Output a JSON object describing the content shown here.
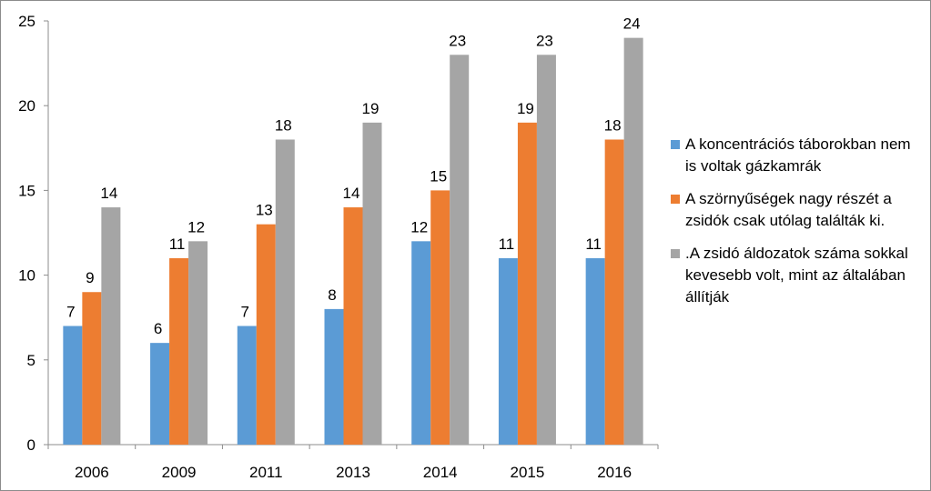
{
  "chart_data": {
    "type": "bar",
    "categories": [
      "2006",
      "2009",
      "2011",
      "2013",
      "2014",
      "2015",
      "2016"
    ],
    "series": [
      {
        "name": "A koncentrációs táborokban nem is voltak gázkamrák",
        "color": "#5b9bd5",
        "values": [
          7,
          6,
          7,
          8,
          12,
          11,
          11
        ]
      },
      {
        "name": "A szörnyűségek nagy részét a zsidók csak utólag találták ki.",
        "color": "#ed7d31",
        "values": [
          9,
          11,
          13,
          14,
          15,
          19,
          18
        ]
      },
      {
        "name": ".A zsidó áldozatok száma sokkal kevesebb volt, mint az általában állítják",
        "color": "#a5a5a5",
        "values": [
          14,
          12,
          18,
          19,
          23,
          23,
          24
        ]
      }
    ],
    "yticks": [
      "0",
      "5",
      "10",
      "15",
      "20",
      "25"
    ],
    "ylim": [
      0,
      25
    ],
    "grid": false,
    "legend": "right",
    "title": "",
    "xlabel": "",
    "ylabel": ""
  }
}
